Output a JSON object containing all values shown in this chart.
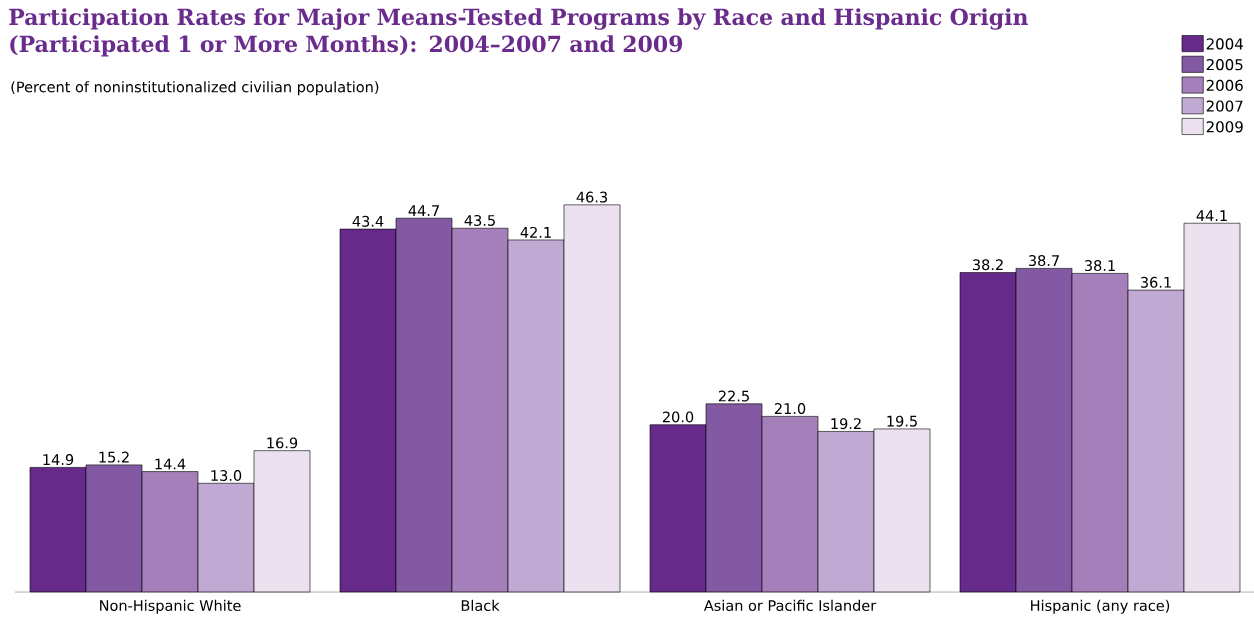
{
  "chart_data": {
    "type": "bar",
    "title": "Participation Rates for Major Means-Tested Programs by Race and Hispanic Origin (Participated 1 or More Months): 2004–2007 and 2009",
    "subtitle": "(Percent of noninstitutionalized civilian population)",
    "categories": [
      "Non-Hispanic White",
      "Black",
      "Asian or Pacific Islander",
      "Hispanic (any race)"
    ],
    "series": [
      {
        "name": "2004",
        "color": "#652a8a",
        "values": [
          14.9,
          43.4,
          20.0,
          38.2
        ],
        "value_labels": [
          "14.9",
          "43.4",
          "20.0",
          "38.2"
        ]
      },
      {
        "name": "2005",
        "color": "#8359a3",
        "values": [
          15.2,
          44.7,
          22.5,
          38.7
        ],
        "value_labels": [
          "15.2",
          "44.7",
          "22.5",
          "38.7"
        ]
      },
      {
        "name": "2006",
        "color": "#a47fba",
        "values": [
          14.4,
          43.5,
          21.0,
          38.1
        ],
        "value_labels": [
          "14.4",
          "43.5",
          "21.0",
          "38.1"
        ]
      },
      {
        "name": "2007",
        "color": "#c0a9d2",
        "values": [
          13.0,
          42.1,
          19.2,
          36.1
        ],
        "value_labels": [
          "13.0",
          "42.1",
          "19.2",
          "36.1"
        ]
      },
      {
        "name": "2009",
        "color": "#ebe1ef",
        "values": [
          16.9,
          46.3,
          19.5,
          44.1
        ],
        "value_labels": [
          "16.9",
          "46.3",
          "19.5",
          "44.1"
        ]
      }
    ],
    "legend": "top right"
  }
}
